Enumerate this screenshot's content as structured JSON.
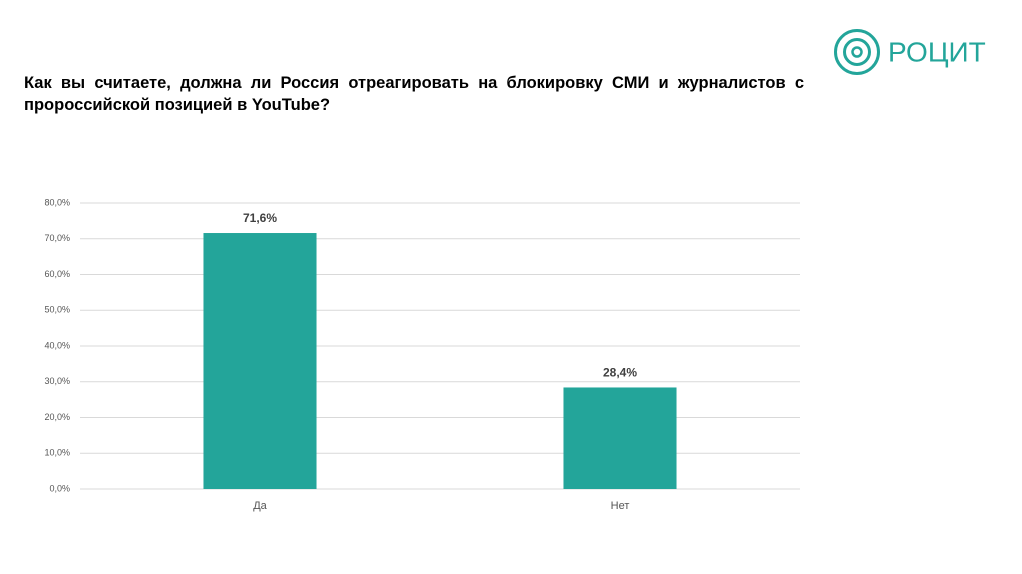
{
  "logo_text": "РОЦИТ",
  "chart_data": {
    "type": "bar",
    "title": "Как вы считаете, должна ли Россия отреагировать на блокировку СМИ и журналистов с пророссийской позицией в YouTube?",
    "categories": [
      "Да",
      "Нет"
    ],
    "values": [
      71.6,
      28.4
    ],
    "value_labels": [
      "71,6%",
      "28,4%"
    ],
    "color": "#23a59a",
    "ylim": [
      0,
      80
    ],
    "yticks": [
      {
        "value": 0,
        "label": "0,0%"
      },
      {
        "value": 10,
        "label": "10,0%"
      },
      {
        "value": 20,
        "label": "20,0%"
      },
      {
        "value": 30,
        "label": "30,0%"
      },
      {
        "value": 40,
        "label": "40,0%"
      },
      {
        "value": 50,
        "label": "50,0%"
      },
      {
        "value": 60,
        "label": "60,0%"
      },
      {
        "value": 70,
        "label": "70,0%"
      },
      {
        "value": 80,
        "label": "80,0%"
      }
    ],
    "grid": true
  }
}
